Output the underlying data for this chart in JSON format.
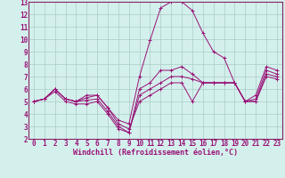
{
  "xlabel": "Windchill (Refroidissement éolien,°C)",
  "background_color": "#d4f0ec",
  "grid_color": "#aaccc8",
  "line_color": "#991177",
  "spine_color": "#882266",
  "xlim": [
    -0.5,
    23.5
  ],
  "ylim": [
    2,
    13
  ],
  "xticks": [
    0,
    1,
    2,
    3,
    4,
    5,
    6,
    7,
    8,
    9,
    10,
    11,
    12,
    13,
    14,
    15,
    16,
    17,
    18,
    19,
    20,
    21,
    22,
    23
  ],
  "yticks": [
    2,
    3,
    4,
    5,
    6,
    7,
    8,
    9,
    10,
    11,
    12,
    13
  ],
  "series": [
    [
      5.0,
      5.2,
      6.0,
      5.2,
      5.0,
      5.5,
      5.5,
      4.5,
      3.2,
      2.8,
      5.0,
      5.5,
      6.0,
      6.5,
      6.5,
      5.0,
      6.5,
      6.5,
      6.5,
      6.5,
      5.0,
      5.2,
      7.5,
      7.2
    ],
    [
      5.0,
      5.2,
      6.0,
      5.2,
      5.0,
      5.3,
      5.5,
      4.5,
      3.5,
      3.2,
      7.0,
      9.9,
      12.5,
      13.0,
      13.0,
      12.3,
      10.5,
      9.0,
      8.5,
      6.5,
      5.0,
      5.5,
      7.8,
      7.5
    ],
    [
      5.0,
      5.2,
      6.0,
      5.2,
      5.0,
      5.1,
      5.2,
      4.2,
      3.0,
      2.5,
      6.0,
      6.5,
      7.5,
      7.5,
      7.8,
      7.2,
      6.5,
      6.5,
      6.5,
      6.5,
      5.0,
      5.0,
      7.2,
      7.0
    ],
    [
      5.0,
      5.2,
      5.8,
      5.0,
      4.8,
      4.8,
      5.0,
      4.0,
      2.8,
      2.5,
      5.5,
      6.0,
      6.5,
      7.0,
      7.0,
      6.8,
      6.5,
      6.5,
      6.5,
      6.5,
      5.0,
      5.0,
      7.0,
      6.8
    ]
  ],
  "tick_fontsize": 5.5,
  "xlabel_fontsize": 6.0
}
